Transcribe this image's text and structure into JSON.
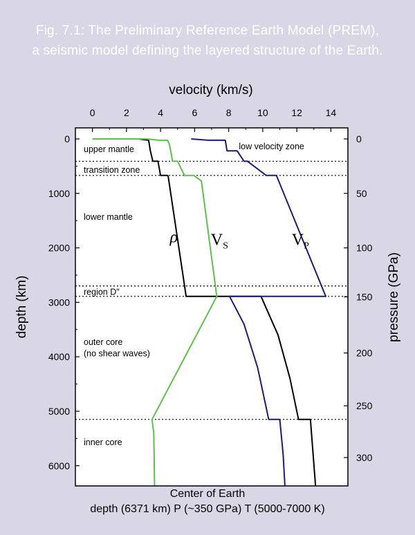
{
  "caption": {
    "line1": "Fig. 7.1: The Preliminary Reference Earth Model (PREM),",
    "line2": "a seismic model defining the layered structure of the Earth."
  },
  "chart_data": {
    "type": "line",
    "xlabel": "velocity (km/s)",
    "ylabel": "depth (km)",
    "y2label": "pressure (GPa)",
    "xlim": [
      -1,
      15
    ],
    "ylim": [
      0,
      6371
    ],
    "y_inverted": true,
    "x_ticks": [
      0,
      2,
      4,
      6,
      8,
      10,
      12,
      14
    ],
    "y_ticks": [
      0,
      1000,
      2000,
      3000,
      4000,
      5000,
      6000
    ],
    "y2_ticks": [
      {
        "label": "0",
        "depth": 0
      },
      {
        "label": "50",
        "depth": 1000
      },
      {
        "label": "100",
        "depth": 2000
      },
      {
        "label": "150",
        "depth": 2900
      },
      {
        "label": "200",
        "depth": 3930
      },
      {
        "label": "250",
        "depth": 4900
      },
      {
        "label": "300",
        "depth": 5850
      }
    ],
    "boundaries_km": [
      410,
      670,
      2700,
      2891,
      5150
    ],
    "zones": [
      {
        "label": "upper mantle",
        "depth": 180
      },
      {
        "label": "transition zone",
        "depth": 560
      },
      {
        "label": "lower mantle",
        "depth": 1420
      },
      {
        "label": "region D\"",
        "depth": 2800
      },
      {
        "label": "outer core",
        "depth": 3720
      },
      {
        "label": "(no shear waves)",
        "depth": 3930
      },
      {
        "label": "inner core",
        "depth": 5560
      }
    ],
    "annotation": {
      "label": "low velocity zone",
      "depth": 130,
      "x": 8.6
    },
    "series": [
      {
        "name": "ρ",
        "color": "#000000",
        "points": [
          [
            1.0,
            0
          ],
          [
            2.7,
            0
          ],
          [
            3.3,
            24
          ],
          [
            3.4,
            220
          ],
          [
            3.55,
            410
          ],
          [
            3.85,
            410
          ],
          [
            4.0,
            670
          ],
          [
            4.4,
            670
          ],
          [
            4.45,
            690
          ],
          [
            5.5,
            2891
          ],
          [
            9.9,
            2891
          ],
          [
            10.9,
            3600
          ],
          [
            11.6,
            4400
          ],
          [
            12.1,
            5150
          ],
          [
            12.8,
            5150
          ],
          [
            13.1,
            6371
          ]
        ],
        "label_at": [
          4.55,
          1900
        ]
      },
      {
        "name": "V",
        "sub": "S",
        "color": "#5dc04a",
        "points": [
          [
            0,
            0
          ],
          [
            3.2,
            0
          ],
          [
            3.9,
            24
          ],
          [
            4.4,
            24
          ],
          [
            4.5,
            80
          ],
          [
            4.6,
            220
          ],
          [
            4.7,
            410
          ],
          [
            5.0,
            410
          ],
          [
            5.4,
            670
          ],
          [
            5.95,
            670
          ],
          [
            6.4,
            771
          ],
          [
            7.3,
            2891
          ],
          [
            3.5,
            5150
          ],
          [
            3.6,
            5400
          ],
          [
            3.65,
            6371
          ]
        ],
        "label_at": [
          6.95,
          1950
        ]
      },
      {
        "name": "V",
        "sub": "P",
        "color": "#1b1b78",
        "points": [
          [
            5.8,
            0
          ],
          [
            6.8,
            24
          ],
          [
            7.8,
            24
          ],
          [
            7.9,
            220
          ],
          [
            8.5,
            220
          ],
          [
            8.9,
            410
          ],
          [
            9.1,
            410
          ],
          [
            10.2,
            670
          ],
          [
            10.8,
            670
          ],
          [
            13.7,
            2891
          ],
          [
            8.05,
            2891
          ],
          [
            8.9,
            3400
          ],
          [
            9.7,
            4200
          ],
          [
            10.35,
            5150
          ],
          [
            11.0,
            5150
          ],
          [
            11.2,
            5800
          ],
          [
            11.3,
            6371
          ]
        ],
        "label_at": [
          11.7,
          1950
        ]
      }
    ]
  },
  "footer": {
    "line1": "Center of Earth",
    "line2": "depth (6371 km) P (~350 GPa) T (5000-7000 K)"
  }
}
